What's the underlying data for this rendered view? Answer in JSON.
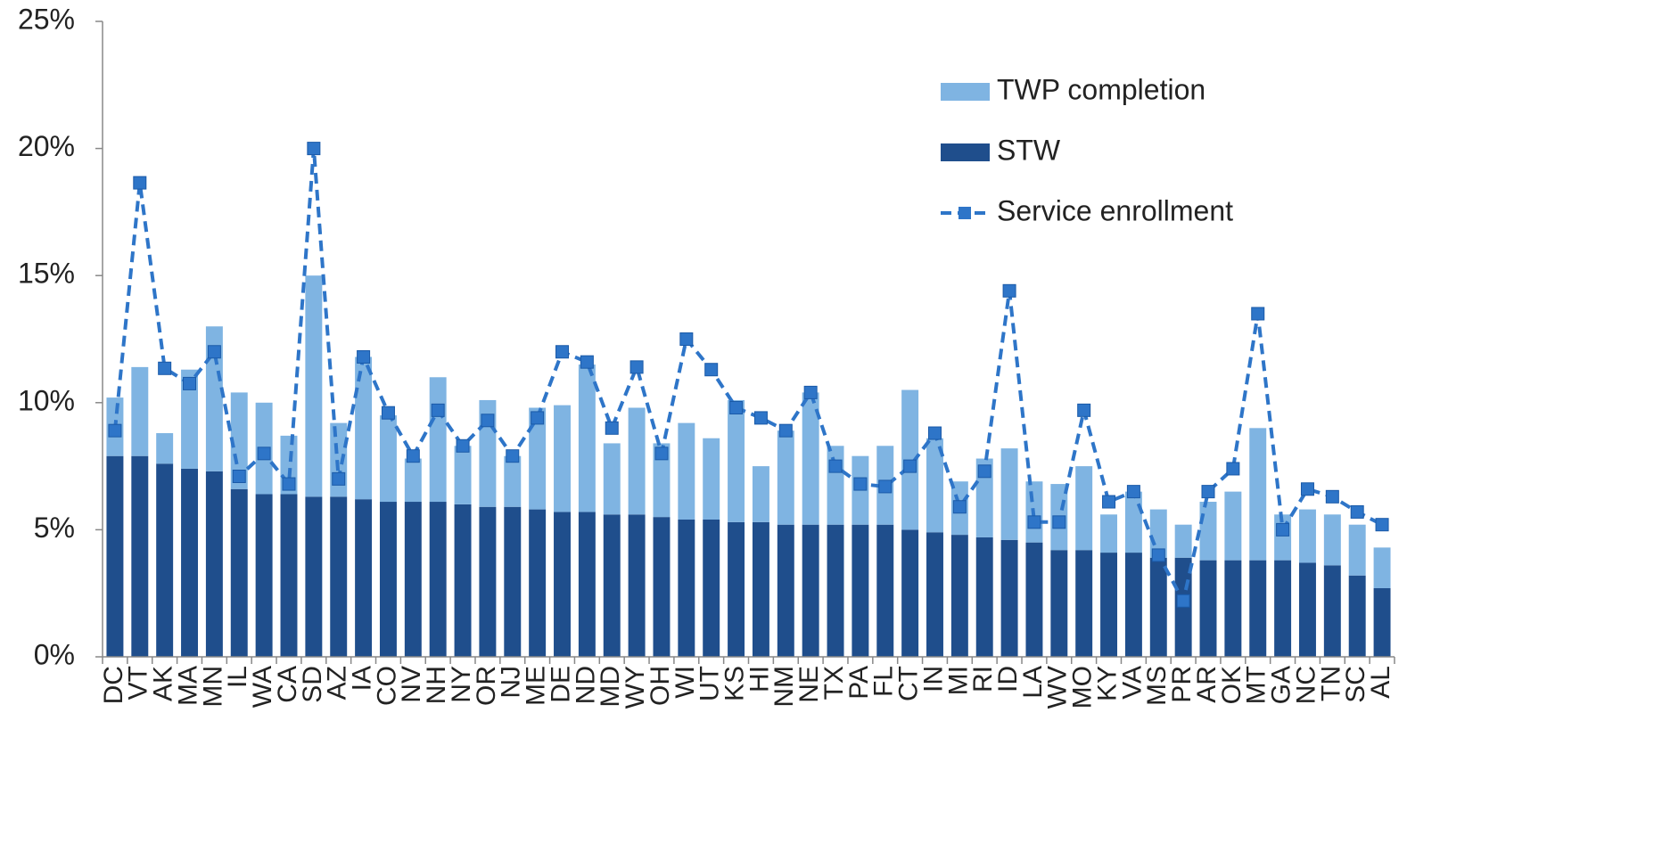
{
  "chart_data": {
    "type": "bar",
    "stacked": true,
    "categories": [
      "DC",
      "VT",
      "AK",
      "MA",
      "MN",
      "IL",
      "WA",
      "CA",
      "SD",
      "AZ",
      "IA",
      "CO",
      "NV",
      "NH",
      "NY",
      "OR",
      "NJ",
      "ME",
      "DE",
      "ND",
      "MD",
      "WY",
      "OH",
      "WI",
      "UT",
      "KS",
      "HI",
      "NM",
      "NE",
      "TX",
      "PA",
      "FL",
      "CT",
      "IN",
      "MI",
      "RI",
      "ID",
      "LA",
      "WV",
      "MO",
      "KY",
      "VA",
      "MS",
      "PR",
      "AR",
      "OK",
      "MT",
      "GA",
      "NC",
      "TN",
      "SC",
      "AL"
    ],
    "series": [
      {
        "name": "TWP completion",
        "color": "#7fb4e2",
        "type": "bar",
        "values": [
          2.3,
          3.5,
          1.2,
          3.9,
          5.7,
          3.8,
          3.6,
          2.3,
          8.7,
          2.9,
          5.6,
          3.4,
          1.7,
          4.9,
          2.3,
          4.2,
          2.0,
          4.0,
          4.2,
          5.8,
          2.8,
          4.2,
          2.9,
          3.8,
          3.2,
          4.8,
          2.2,
          3.7,
          5.2,
          3.1,
          2.7,
          3.1,
          5.5,
          3.7,
          2.1,
          3.1,
          3.6,
          2.4,
          2.6,
          3.3,
          1.5,
          2.4,
          1.9,
          1.3,
          2.3,
          2.7,
          5.2,
          1.8,
          2.1,
          2.0,
          2.0,
          1.6
        ]
      },
      {
        "name": "STW",
        "color": "#1f4e8c",
        "type": "bar",
        "values": [
          7.9,
          7.9,
          7.6,
          7.4,
          7.3,
          6.6,
          6.4,
          6.4,
          6.3,
          6.3,
          6.2,
          6.1,
          6.1,
          6.1,
          6.0,
          5.9,
          5.9,
          5.8,
          5.7,
          5.7,
          5.6,
          5.6,
          5.5,
          5.4,
          5.4,
          5.3,
          5.3,
          5.2,
          5.2,
          5.2,
          5.2,
          5.2,
          5.0,
          4.9,
          4.8,
          4.7,
          4.6,
          4.5,
          4.2,
          4.2,
          4.1,
          4.1,
          3.9,
          3.9,
          3.8,
          3.8,
          3.8,
          3.8,
          3.7,
          3.6,
          3.2,
          2.7
        ]
      },
      {
        "name": "Service enrollment",
        "color": "#2e75c8",
        "type": "line",
        "values": [
          8.9,
          18.65,
          11.35,
          10.75,
          12.0,
          7.1,
          8.0,
          6.8,
          20.0,
          7.0,
          11.8,
          9.6,
          7.9,
          9.7,
          8.3,
          9.3,
          7.9,
          9.4,
          12.0,
          11.6,
          9.0,
          11.4,
          8.0,
          12.5,
          11.3,
          9.8,
          9.4,
          8.9,
          10.4,
          7.5,
          6.8,
          6.7,
          7.5,
          8.8,
          5.9,
          7.3,
          14.4,
          5.3,
          5.3,
          9.7,
          6.1,
          6.5,
          4.0,
          2.2,
          6.5,
          7.4,
          13.5,
          5.0,
          6.6,
          6.3,
          5.7,
          5.2
        ]
      }
    ],
    "ylim": [
      0,
      25
    ],
    "yticks": [
      {
        "value": 0,
        "label": "0%"
      },
      {
        "value": 5,
        "label": "5%"
      },
      {
        "value": 10,
        "label": "10%"
      },
      {
        "value": 15,
        "label": "15%"
      },
      {
        "value": 20,
        "label": "20%"
      },
      {
        "value": 25,
        "label": "25%"
      }
    ],
    "grid": false,
    "legend": "upper right"
  }
}
